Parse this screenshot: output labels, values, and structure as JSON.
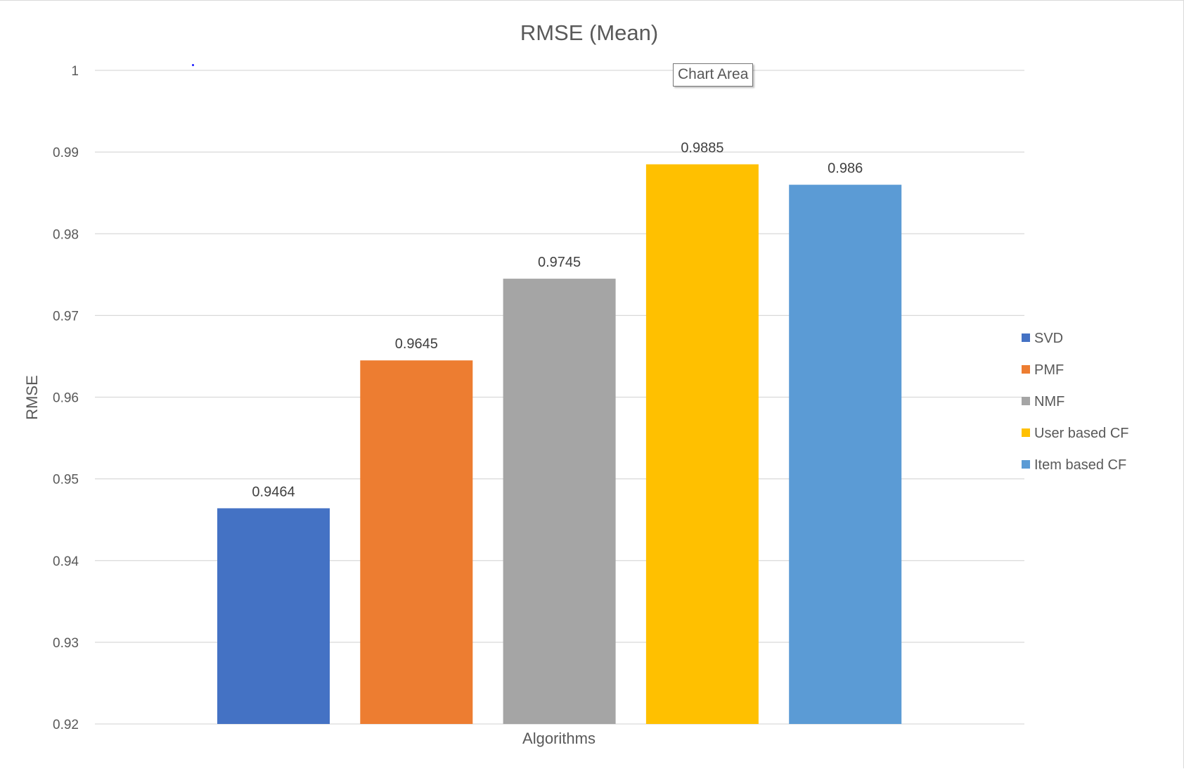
{
  "tooltip": {
    "text": "Chart Area"
  },
  "chart_data": {
    "type": "bar",
    "title": "RMSE (Mean)",
    "xlabel": "Algorithms",
    "ylabel": "RMSE",
    "ylim": [
      0.92,
      1
    ],
    "yticks": [
      "0.92",
      "0.93",
      "0.94",
      "0.95",
      "0.96",
      "0.97",
      "0.98",
      "0.99",
      "1"
    ],
    "grid": true,
    "legend_position": "right",
    "series": [
      {
        "name": "SVD",
        "value": 0.9464,
        "label": "0.9464",
        "color": "#4472c4"
      },
      {
        "name": "PMF",
        "value": 0.9645,
        "label": "0.9645",
        "color": "#ed7d31"
      },
      {
        "name": "NMF",
        "value": 0.9745,
        "label": "0.9745",
        "color": "#a5a5a5"
      },
      {
        "name": "User based CF",
        "value": 0.9885,
        "label": "0.9885",
        "color": "#ffc000"
      },
      {
        "name": "Item based CF",
        "value": 0.986,
        "label": "0.986",
        "color": "#5b9bd5"
      }
    ]
  }
}
